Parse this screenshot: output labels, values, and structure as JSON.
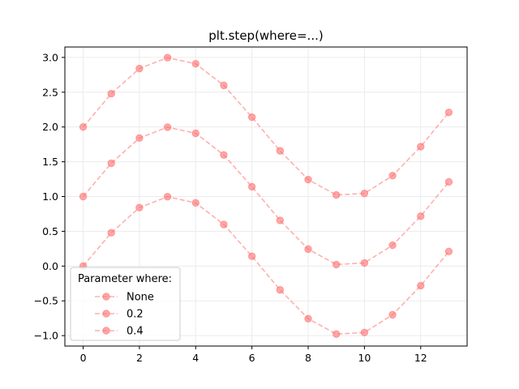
{
  "chart_data": {
    "type": "line",
    "title": "plt.step(where=...)",
    "xlabel": "",
    "ylabel": "",
    "xlim": [
      -0.65,
      13.65
    ],
    "ylim": [
      -1.15,
      3.15
    ],
    "xticks": [
      0,
      2,
      4,
      6,
      8,
      10,
      12
    ],
    "xtick_labels": [
      "0",
      "2",
      "4",
      "6",
      "8",
      "10",
      "12"
    ],
    "yticks": [
      -1.0,
      -0.5,
      0.0,
      0.5,
      1.0,
      1.5,
      2.0,
      2.5,
      3.0
    ],
    "ytick_labels": [
      "−1.0",
      "−0.5",
      "0.0",
      "0.5",
      "1.0",
      "1.5",
      "2.0",
      "2.5",
      "3.0"
    ],
    "grid": true,
    "legend": {
      "title": "Parameter where:",
      "placement": "lower-left",
      "entries": [
        "None",
        "0.2",
        "0.4"
      ]
    },
    "x": [
      0,
      1,
      2,
      3,
      4,
      5,
      6,
      7,
      8,
      9,
      10,
      11,
      12,
      13
    ],
    "series": [
      {
        "name": "0.4",
        "values": [
          2.0,
          2.479,
          2.841,
          2.997,
          2.909,
          2.598,
          2.141,
          1.657,
          1.244,
          1.022,
          1.045,
          1.3,
          1.717,
          2.21
        ]
      },
      {
        "name": "0.2",
        "values": [
          1.0,
          1.479,
          1.841,
          1.997,
          1.909,
          1.598,
          1.141,
          0.657,
          0.244,
          0.022,
          0.045,
          0.3,
          0.717,
          1.21
        ]
      },
      {
        "name": "None",
        "values": [
          0.0,
          0.479,
          0.841,
          0.997,
          0.909,
          0.598,
          0.141,
          -0.343,
          -0.756,
          -0.978,
          -0.955,
          -0.7,
          -0.283,
          0.21
        ]
      }
    ],
    "color": "#ff6e6e"
  }
}
